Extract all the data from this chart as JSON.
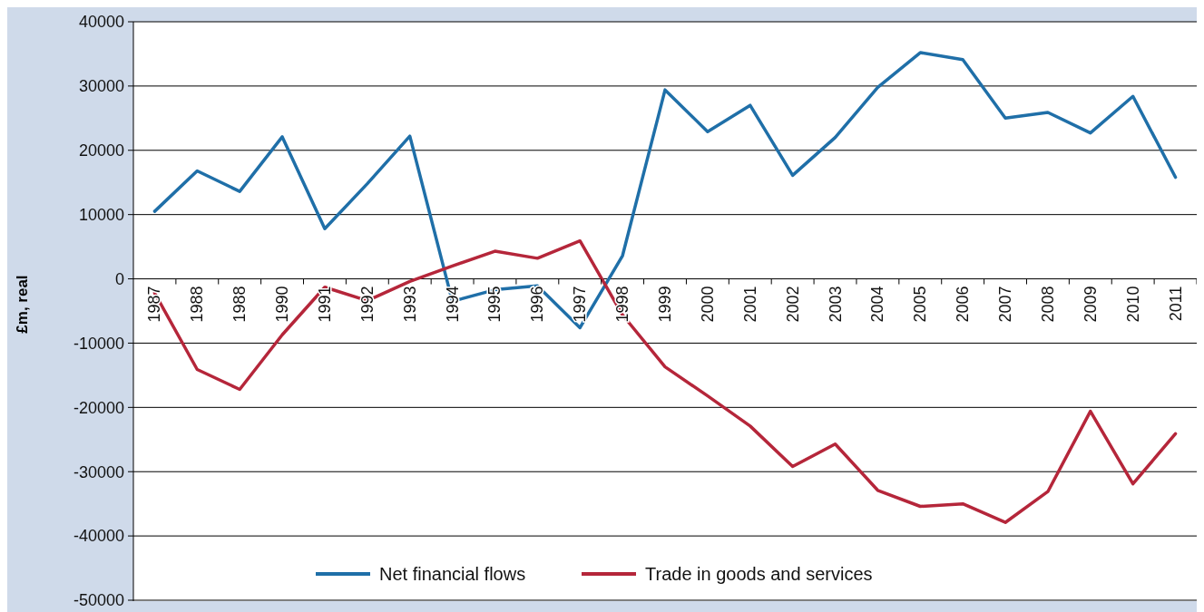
{
  "chart_data": {
    "type": "line",
    "ylabel": "£m, real",
    "categories": [
      "1987",
      "1988",
      "1988",
      "1990",
      "1991",
      "1992",
      "1993",
      "1994",
      "1995",
      "1996",
      "1997",
      "1998",
      "1999",
      "2000",
      "2001",
      "2002",
      "2003",
      "2004",
      "2005",
      "2006",
      "2007",
      "2008",
      "2009",
      "2010",
      "2011"
    ],
    "series": [
      {
        "name": "Net financial flows",
        "color": "#1f6fa8",
        "values": [
          10500,
          16800,
          13600,
          22100,
          7800,
          14800,
          22200,
          -3500,
          -1700,
          -1100,
          -7600,
          3600,
          29400,
          22900,
          27000,
          16100,
          22000,
          29800,
          35200,
          34100,
          25000,
          25900,
          22700,
          28400,
          15800
        ]
      },
      {
        "name": "Trade in goods and services",
        "color": "#b5263a",
        "values": [
          -2200,
          -14100,
          -17200,
          -8700,
          -1300,
          -3400,
          -400,
          2000,
          4300,
          3200,
          5900,
          -5600,
          -13700,
          -18200,
          -22900,
          -29200,
          -25700,
          -32900,
          -35400,
          -35000,
          -37900,
          -33100,
          -20600,
          -31900,
          -24100
        ]
      }
    ],
    "ylim": [
      -50000,
      40000
    ],
    "yticks": [
      -50000,
      -40000,
      -30000,
      -20000,
      -10000,
      0,
      10000,
      20000,
      30000,
      40000
    ],
    "grid": "y",
    "legend": "bottom",
    "marker": "none",
    "line_style": "solid"
  }
}
